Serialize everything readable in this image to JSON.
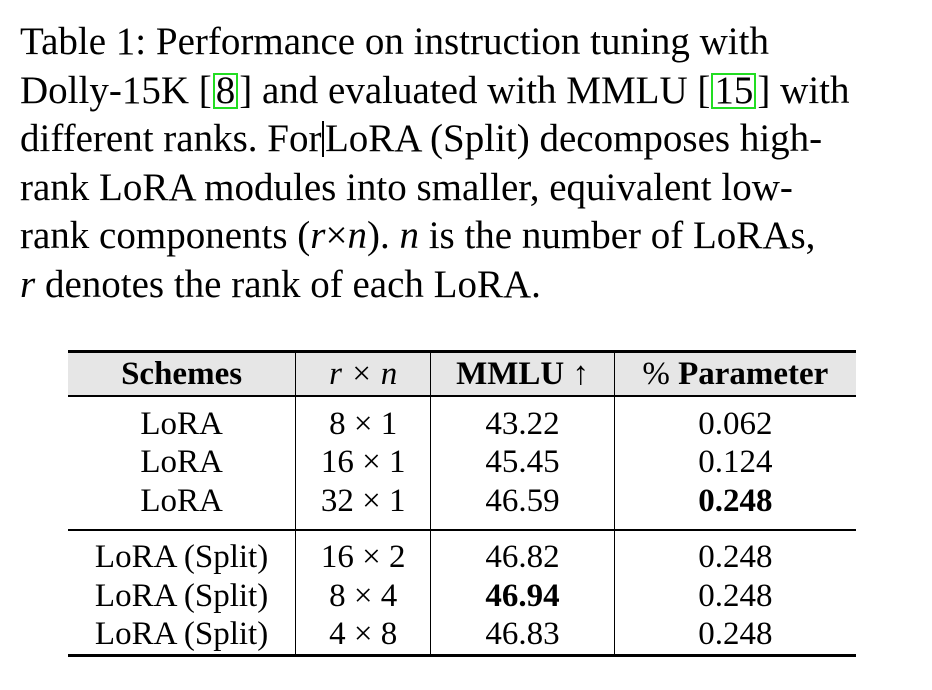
{
  "caption": {
    "line1": "Table 1: Performance on instruction tuning with",
    "line2_a": "Dolly-15K ",
    "cite1": "8",
    "line2_b": " and evaluated with MMLU ",
    "cite2": "15",
    "line2_c": " with",
    "line3_a": "different ranks. For",
    "line3_b": "LoRA (Split) decomposes high-",
    "line4": "rank LoRA modules into smaller, equivalent low-",
    "line5_a": "rank components (",
    "line5_b": "). ",
    "line5_c": " is the number of LoRAs,",
    "line6_b": " denotes the rank of each LoRA.",
    "var_r": "r",
    "var_n": "n",
    "times": "×"
  },
  "table": {
    "headers": {
      "schemes": "Schemes",
      "rxn": "r × n",
      "mmlu": "MMLU ↑",
      "param_pct": "%",
      "param": " Parameter"
    },
    "group1": [
      {
        "scheme": "LoRA",
        "rxn": "8 × 1",
        "mmlu": "43.22",
        "param": "0.062"
      },
      {
        "scheme": "LoRA",
        "rxn": "16 × 1",
        "mmlu": "45.45",
        "param": "0.124"
      },
      {
        "scheme": "LoRA",
        "rxn": "32 × 1",
        "mmlu": "46.59",
        "param": "0.248"
      }
    ],
    "group2": [
      {
        "scheme": "LoRA (Split)",
        "rxn": "16 × 2",
        "mmlu": "46.82",
        "param": "0.248"
      },
      {
        "scheme": "LoRA (Split)",
        "rxn": "8 × 4",
        "mmlu": "46.94",
        "param": "0.248"
      },
      {
        "scheme": "LoRA (Split)",
        "rxn": "4 × 8",
        "mmlu": "46.83",
        "param": "0.248"
      }
    ]
  }
}
